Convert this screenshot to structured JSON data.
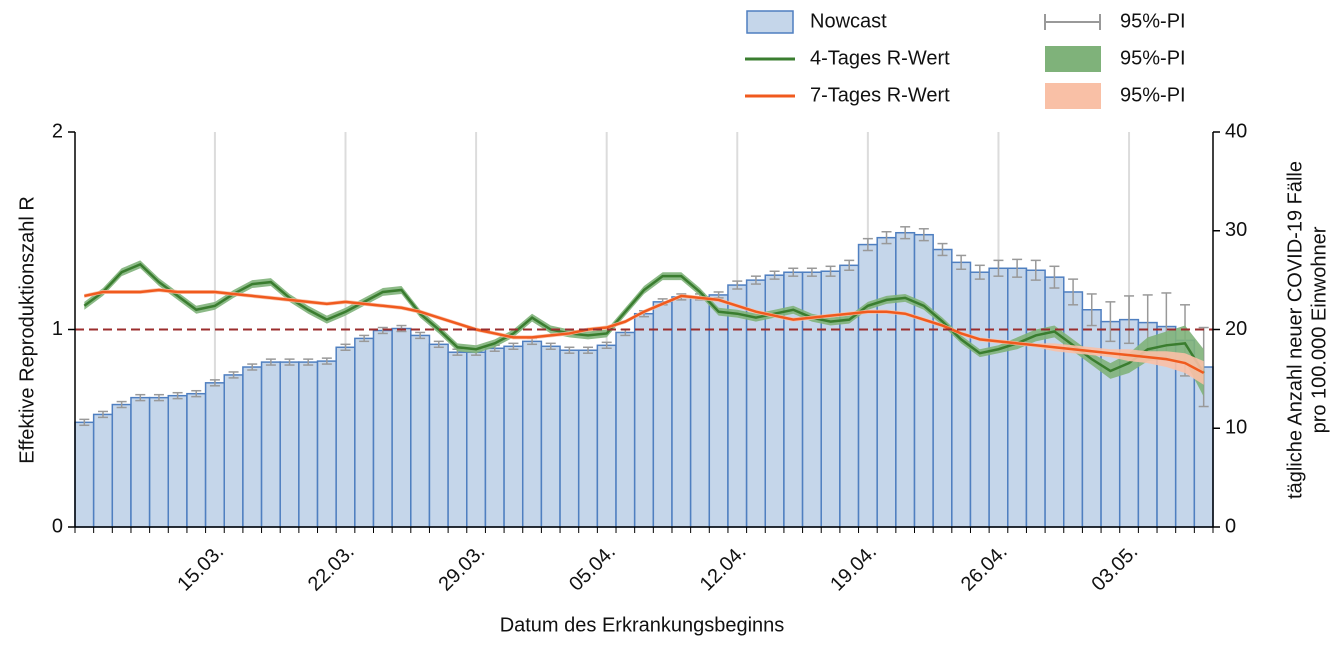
{
  "chart_data": {
    "type": "bar",
    "x_label": "Datum des Erkrankungsbeginns",
    "y_label": "Effektive Reproduktionszahl R",
    "y2_label": [
      "tägliche Anzahl neuer COVID-19 Fälle",
      "pro 100.000 Einwohner"
    ],
    "categories": [
      null,
      null,
      null,
      null,
      null,
      null,
      null,
      "15.03.",
      null,
      null,
      null,
      null,
      null,
      null,
      "22.03.",
      null,
      null,
      null,
      null,
      null,
      null,
      "29.03.",
      null,
      null,
      null,
      null,
      null,
      null,
      "05.04.",
      null,
      null,
      null,
      null,
      null,
      null,
      "12.04.",
      null,
      null,
      null,
      null,
      null,
      null,
      "19.04.",
      null,
      null,
      null,
      null,
      null,
      null,
      "26.04.",
      null,
      null,
      null,
      null,
      null,
      null,
      "03.05.",
      null,
      null,
      null,
      null
    ],
    "ylim": [
      0,
      2
    ],
    "yticks": [
      0,
      1,
      2
    ],
    "y2lim": [
      0,
      40
    ],
    "y2ticks": [
      0,
      10,
      20,
      30,
      40
    ],
    "hline": 1,
    "hline_color": "#9b2d2d",
    "grid": true,
    "series": [
      {
        "name": "Nowcast",
        "type": "bar",
        "axis": "y2",
        "color": "#c5d6ea",
        "edge": "#4f7fc0",
        "pi_name": "95%-PI",
        "pi_color": "#999999",
        "values": [
          10.6,
          11.4,
          12.4,
          13.1,
          13.1,
          13.3,
          13.5,
          14.6,
          15.4,
          16.2,
          16.7,
          16.7,
          16.7,
          16.8,
          18.2,
          19.1,
          19.9,
          20.1,
          19.4,
          18.5,
          17.7,
          17.7,
          18.1,
          18.3,
          18.8,
          18.3,
          17.9,
          17.9,
          18.4,
          19.7,
          21.6,
          22.8,
          23.3,
          23.3,
          23.5,
          24.5,
          25.0,
          25.5,
          25.8,
          25.8,
          25.9,
          26.5,
          28.6,
          29.3,
          29.8,
          29.6,
          28.1,
          26.8,
          25.8,
          26.2,
          26.2,
          26.0,
          25.3,
          23.8,
          22.0,
          20.8,
          21.0,
          20.7,
          20.3,
          18.9,
          16.2
        ],
        "pi": [
          0.3,
          0.3,
          0.3,
          0.3,
          0.3,
          0.3,
          0.3,
          0.3,
          0.3,
          0.3,
          0.3,
          0.3,
          0.3,
          0.3,
          0.3,
          0.3,
          0.3,
          0.3,
          0.3,
          0.3,
          0.3,
          0.3,
          0.3,
          0.3,
          0.3,
          0.3,
          0.3,
          0.3,
          0.3,
          0.3,
          0.3,
          0.3,
          0.3,
          0.3,
          0.3,
          0.4,
          0.4,
          0.4,
          0.4,
          0.4,
          0.5,
          0.5,
          0.6,
          0.6,
          0.6,
          0.6,
          0.6,
          0.7,
          0.7,
          0.8,
          0.9,
          1.0,
          1.1,
          1.3,
          1.6,
          2.0,
          2.4,
          2.8,
          3.4,
          3.6,
          4.0
        ]
      },
      {
        "name": "4-Tages R-Wert",
        "type": "line",
        "color": "#3a7d2f",
        "pi_name": "95%-PI",
        "pi_color": "#7fb27a",
        "values": [
          1.12,
          1.19,
          1.29,
          1.33,
          1.24,
          1.17,
          1.1,
          1.12,
          1.18,
          1.23,
          1.24,
          1.16,
          1.1,
          1.05,
          1.09,
          1.14,
          1.19,
          1.2,
          1.08,
          1.0,
          0.91,
          0.9,
          0.93,
          0.98,
          1.06,
          1.0,
          0.98,
          0.97,
          0.98,
          1.09,
          1.2,
          1.27,
          1.27,
          1.19,
          1.09,
          1.08,
          1.06,
          1.08,
          1.1,
          1.06,
          1.04,
          1.05,
          1.12,
          1.15,
          1.16,
          1.12,
          1.04,
          0.95,
          0.88,
          0.9,
          0.93,
          0.97,
          0.99,
          0.92,
          0.85,
          0.79,
          0.83,
          0.9,
          0.92,
          0.93,
          0.78
        ],
        "pi": [
          0.02,
          0.02,
          0.02,
          0.02,
          0.02,
          0.02,
          0.02,
          0.02,
          0.02,
          0.02,
          0.02,
          0.02,
          0.02,
          0.02,
          0.02,
          0.02,
          0.02,
          0.02,
          0.02,
          0.02,
          0.02,
          0.02,
          0.02,
          0.02,
          0.02,
          0.02,
          0.02,
          0.02,
          0.02,
          0.02,
          0.02,
          0.02,
          0.02,
          0.02,
          0.02,
          0.02,
          0.02,
          0.02,
          0.02,
          0.02,
          0.02,
          0.02,
          0.02,
          0.02,
          0.02,
          0.02,
          0.02,
          0.02,
          0.02,
          0.02,
          0.03,
          0.03,
          0.03,
          0.03,
          0.03,
          0.04,
          0.05,
          0.06,
          0.07,
          0.09,
          0.12
        ]
      },
      {
        "name": "7-Tages R-Wert",
        "type": "line",
        "color": "#f05a1e",
        "pi_name": "95%-PI",
        "pi_color": "#f9c0a6",
        "values": [
          1.17,
          1.19,
          1.19,
          1.19,
          1.2,
          1.19,
          1.19,
          1.19,
          1.18,
          1.17,
          1.16,
          1.15,
          1.14,
          1.13,
          1.14,
          1.13,
          1.12,
          1.11,
          1.09,
          1.06,
          1.03,
          1.0,
          0.98,
          0.96,
          0.96,
          0.97,
          0.98,
          1.0,
          1.01,
          1.04,
          1.09,
          1.13,
          1.17,
          1.16,
          1.15,
          1.12,
          1.09,
          1.07,
          1.05,
          1.06,
          1.07,
          1.08,
          1.09,
          1.09,
          1.08,
          1.05,
          1.02,
          0.98,
          0.95,
          0.94,
          0.93,
          0.92,
          0.91,
          0.9,
          0.89,
          0.88,
          0.87,
          0.86,
          0.85,
          0.83,
          0.78
        ],
        "pi": [
          0.01,
          0.01,
          0.01,
          0.01,
          0.01,
          0.01,
          0.01,
          0.01,
          0.01,
          0.01,
          0.01,
          0.01,
          0.01,
          0.01,
          0.01,
          0.01,
          0.01,
          0.01,
          0.01,
          0.01,
          0.01,
          0.01,
          0.01,
          0.01,
          0.01,
          0.01,
          0.01,
          0.01,
          0.01,
          0.01,
          0.01,
          0.01,
          0.01,
          0.01,
          0.01,
          0.01,
          0.01,
          0.01,
          0.01,
          0.01,
          0.01,
          0.01,
          0.01,
          0.01,
          0.01,
          0.01,
          0.01,
          0.01,
          0.01,
          0.01,
          0.01,
          0.01,
          0.02,
          0.02,
          0.02,
          0.02,
          0.03,
          0.03,
          0.04,
          0.05,
          0.06
        ]
      }
    ]
  }
}
